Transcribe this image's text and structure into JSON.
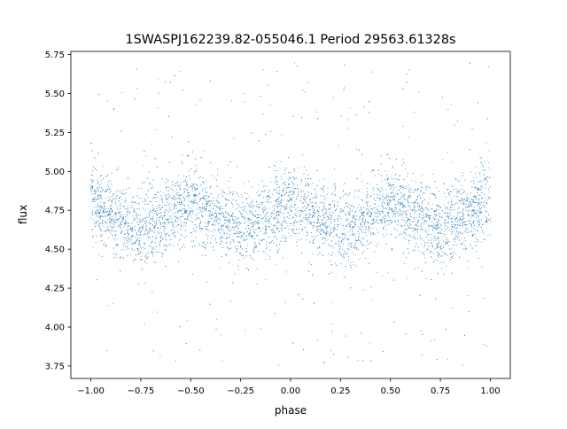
{
  "chart_data": {
    "type": "scatter",
    "title": "1SWASPJ162239.82-055046.1 Period 29563.61328s",
    "xlabel": "phase",
    "ylabel": "flux",
    "xlim": [
      -1.1,
      1.1
    ],
    "ylim": [
      3.67,
      5.77
    ],
    "xticks": [
      -1.0,
      -0.75,
      -0.5,
      -0.25,
      0.0,
      0.25,
      0.5,
      0.75,
      1.0
    ],
    "xtick_labels": [
      "−1.00",
      "−0.75",
      "−0.50",
      "−0.25",
      "0.00",
      "0.25",
      "0.50",
      "0.75",
      "1.00"
    ],
    "yticks": [
      3.75,
      4.0,
      4.25,
      4.5,
      4.75,
      5.0,
      5.25,
      5.5,
      5.75
    ],
    "ytick_labels": [
      "3.75",
      "4.00",
      "4.25",
      "4.50",
      "4.75",
      "5.00",
      "5.25",
      "5.50",
      "5.75"
    ],
    "grid": false,
    "point_color": "#1f77b4",
    "data_range": {
      "x": [
        -1.0,
        1.0
      ],
      "y": [
        3.75,
        5.7
      ]
    },
    "median_trend": {
      "phase": [
        -1.0,
        -0.875,
        -0.75,
        -0.625,
        -0.5,
        -0.375,
        -0.25,
        -0.125,
        0.0,
        0.125,
        0.25,
        0.375,
        0.5,
        0.625,
        0.75,
        0.875,
        1.0
      ],
      "flux": [
        4.8,
        4.71,
        4.62,
        4.71,
        4.8,
        4.71,
        4.63,
        4.71,
        4.8,
        4.71,
        4.62,
        4.71,
        4.8,
        4.71,
        4.62,
        4.71,
        4.8
      ]
    },
    "scatter_sigma": 0.12,
    "n_points_rendered": 6000
  }
}
